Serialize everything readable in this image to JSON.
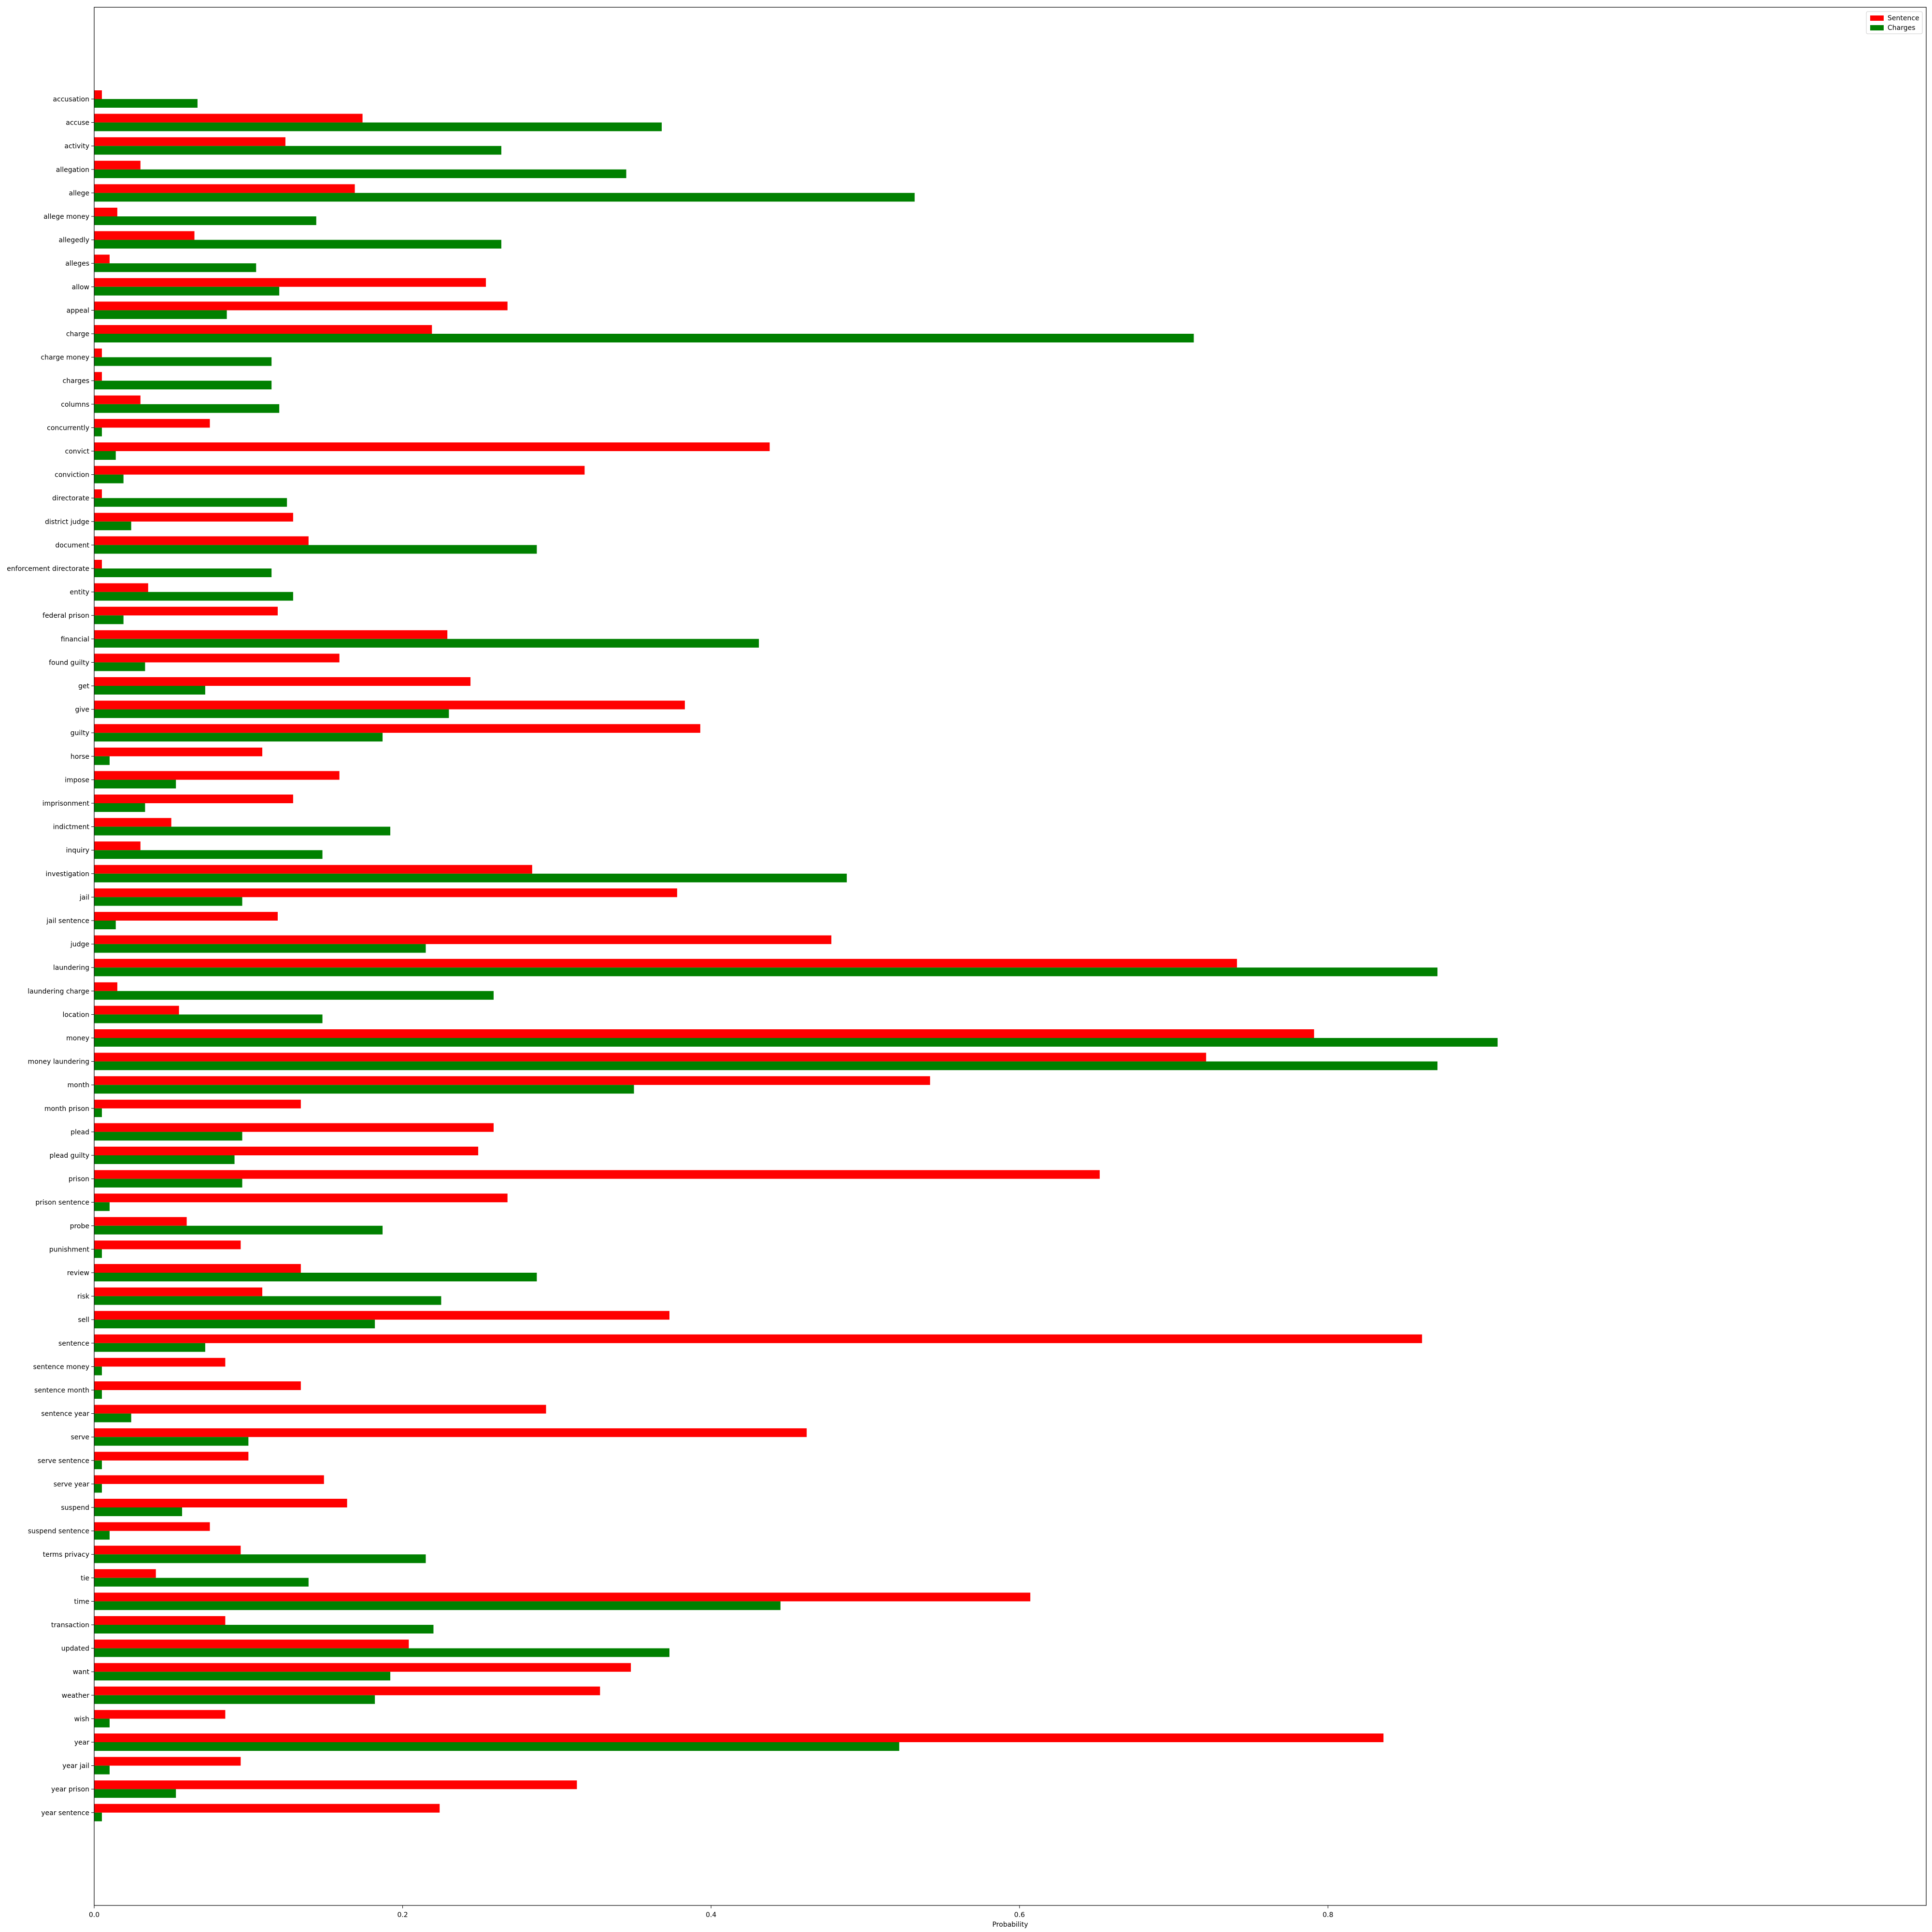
{
  "chart_data": {
    "type": "bar",
    "orientation": "horizontal",
    "xlabel": "Probability",
    "ylabel": "",
    "xlim": [
      0,
      0.945
    ],
    "xticks": [
      "0.0",
      "0.2",
      "0.4",
      "0.6",
      "0.8"
    ],
    "legend_position": "top-right",
    "categories": [
      "accusation",
      "accuse",
      "activity",
      "allegation",
      "allege",
      "allege money",
      "allegedly",
      "alleges",
      "allow",
      "appeal",
      "charge",
      "charge money",
      "charges",
      "columns",
      "concurrently",
      "convict",
      "conviction",
      "directorate",
      "district judge",
      "document",
      "enforcement directorate",
      "entity",
      "federal prison",
      "financial",
      "found guilty",
      "get",
      "give",
      "guilty",
      "horse",
      "impose",
      "imprisonment",
      "indictment",
      "inquiry",
      "investigation",
      "jail",
      "jail sentence",
      "judge",
      "laundering",
      "laundering charge",
      "location",
      "money",
      "money laundering",
      "month",
      "month prison",
      "plead",
      "plead guilty",
      "prison",
      "prison sentence",
      "probe",
      "punishment",
      "review",
      "risk",
      "sell",
      "sentence",
      "sentence money",
      "sentence month",
      "sentence year",
      "serve",
      "serve sentence",
      "serve year",
      "suspend",
      "suspend sentence",
      "terms privacy",
      "tie",
      "time",
      "transaction",
      "updated",
      "want",
      "weather",
      "wish",
      "year",
      "year jail",
      "year prison",
      "year sentence"
    ],
    "series": [
      {
        "name": "Sentence",
        "color": "#ff0000",
        "values": [
          0.005,
          0.174,
          0.124,
          0.03,
          0.169,
          0.015,
          0.065,
          0.01,
          0.254,
          0.268,
          0.219,
          0.005,
          0.005,
          0.03,
          0.075,
          0.438,
          0.318,
          0.005,
          0.129,
          0.139,
          0.005,
          0.035,
          0.119,
          0.229,
          0.159,
          0.244,
          0.383,
          0.393,
          0.109,
          0.159,
          0.129,
          0.05,
          0.03,
          0.284,
          0.378,
          0.119,
          0.478,
          0.741,
          0.015,
          0.055,
          0.791,
          0.721,
          0.542,
          0.134,
          0.259,
          0.249,
          0.652,
          0.268,
          0.06,
          0.095,
          0.134,
          0.109,
          0.373,
          0.861,
          0.085,
          0.134,
          0.293,
          0.462,
          0.1,
          0.149,
          0.164,
          0.075,
          0.095,
          0.04,
          0.607,
          0.085,
          0.204,
          0.348,
          0.328,
          0.085,
          0.836,
          0.095,
          0.313,
          0.224
        ]
      },
      {
        "name": "Charges",
        "color": "#008000",
        "values": [
          0.067,
          0.368,
          0.264,
          0.345,
          0.532,
          0.144,
          0.264,
          0.105,
          0.12,
          0.086,
          0.713,
          0.115,
          0.115,
          0.12,
          0.005,
          0.014,
          0.019,
          0.125,
          0.024,
          0.287,
          0.115,
          0.129,
          0.019,
          0.431,
          0.033,
          0.072,
          0.23,
          0.187,
          0.01,
          0.053,
          0.033,
          0.192,
          0.148,
          0.488,
          0.096,
          0.014,
          0.215,
          0.871,
          0.259,
          0.148,
          0.91,
          0.871,
          0.35,
          0.005,
          0.096,
          0.091,
          0.096,
          0.01,
          0.187,
          0.005,
          0.287,
          0.225,
          0.182,
          0.072,
          0.005,
          0.005,
          0.024,
          0.1,
          0.005,
          0.005,
          0.057,
          0.01,
          0.215,
          0.139,
          0.445,
          0.22,
          0.373,
          0.192,
          0.182,
          0.01,
          0.522,
          0.01,
          0.053,
          0.005
        ]
      }
    ],
    "grid": false
  }
}
